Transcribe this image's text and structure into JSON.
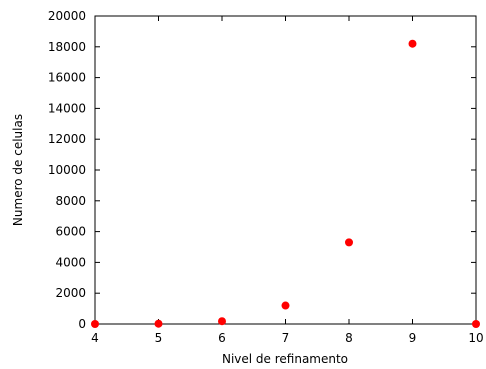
{
  "chart_data": {
    "type": "scatter",
    "xlabel": "Nivel de refinamento",
    "ylabel": "Numero de celulas",
    "xlim": [
      4,
      10
    ],
    "ylim": [
      0,
      20000
    ],
    "x_ticks": [
      4,
      5,
      6,
      7,
      8,
      9,
      10
    ],
    "y_ticks": [
      0,
      2000,
      4000,
      6000,
      8000,
      10000,
      12000,
      14000,
      16000,
      18000,
      20000
    ],
    "grid": false,
    "legend": "none",
    "series": [
      {
        "color": "#ff0000",
        "marker": "circle",
        "points": [
          {
            "x": 4,
            "y": 0
          },
          {
            "x": 5,
            "y": 20
          },
          {
            "x": 6,
            "y": 180
          },
          {
            "x": 7,
            "y": 1200
          },
          {
            "x": 8,
            "y": 5300
          },
          {
            "x": 9,
            "y": 18200
          },
          {
            "x": 10,
            "y": 0
          }
        ]
      }
    ]
  }
}
